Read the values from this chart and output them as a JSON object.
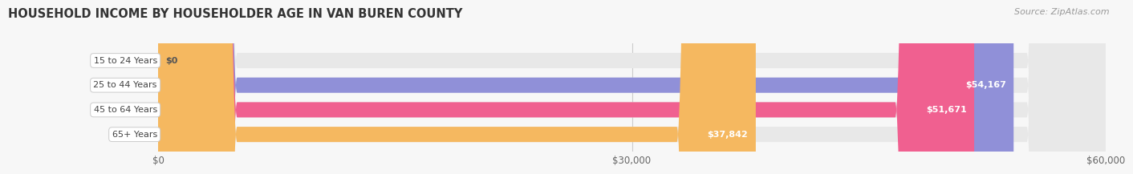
{
  "title": "HOUSEHOLD INCOME BY HOUSEHOLDER AGE IN VAN BUREN COUNTY",
  "source_text": "Source: ZipAtlas.com",
  "categories": [
    "15 to 24 Years",
    "25 to 44 Years",
    "45 to 64 Years",
    "65+ Years"
  ],
  "values": [
    0,
    54167,
    51671,
    37842
  ],
  "value_labels": [
    "$0",
    "$54,167",
    "$51,671",
    "$37,842"
  ],
  "bar_colors": [
    "#6DD8D8",
    "#9090D8",
    "#F06090",
    "#F5B860"
  ],
  "bar_bg_color": "#E8E8E8",
  "xlim": [
    0,
    60000
  ],
  "xticks": [
    0,
    30000,
    60000
  ],
  "xticklabels": [
    "$0",
    "$30,000",
    "$60,000"
  ],
  "title_fontsize": 10.5,
  "source_fontsize": 8,
  "bar_height": 0.62,
  "background_color": "#F7F7F7",
  "figsize": [
    14.06,
    2.33
  ]
}
